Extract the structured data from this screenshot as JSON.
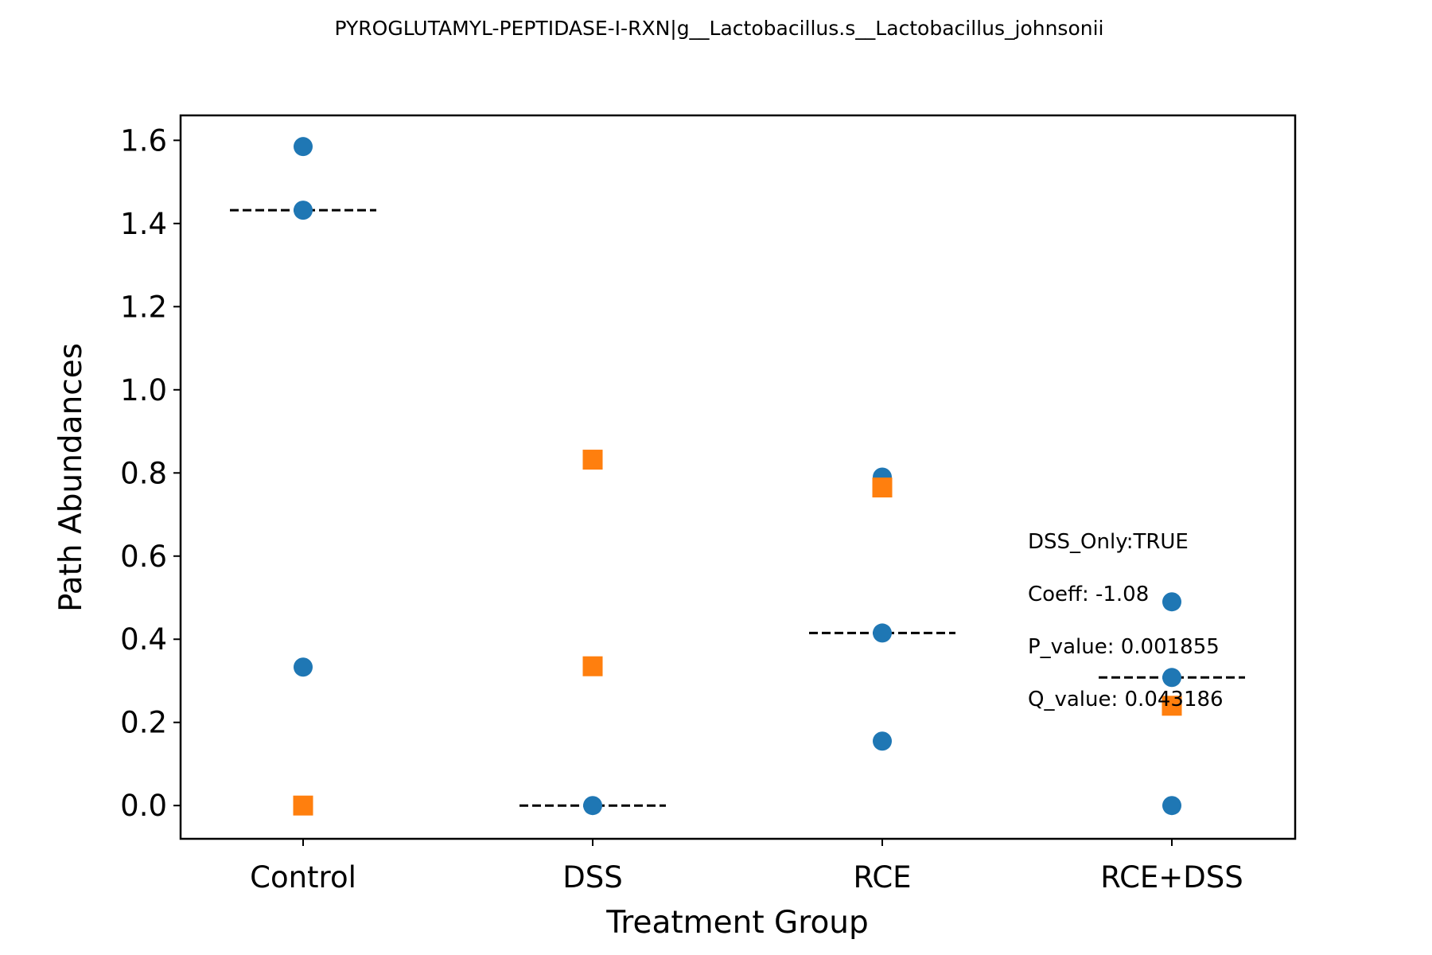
{
  "chart_data": {
    "type": "scatter",
    "title": "PYROGLUTAMYL-PEPTIDASE-I-RXN|g__Lactobacillus.s__Lactobacillus_johnsonii",
    "xlabel": "Treatment Group",
    "ylabel": "Path Abundances",
    "categories": [
      "Control",
      "DSS",
      "RCE",
      "RCE+DSS"
    ],
    "ylim": [
      -0.08,
      1.66
    ],
    "yticks": [
      "0.0",
      "0.2",
      "0.4",
      "0.6",
      "0.8",
      "1.0",
      "1.2",
      "1.4",
      "1.6"
    ],
    "grid": false,
    "series": [
      {
        "marker": "circle",
        "color": "#1f77b4",
        "points": [
          {
            "category": "Control",
            "y": 1.585
          },
          {
            "category": "Control",
            "y": 1.432
          },
          {
            "category": "Control",
            "y": 0.333
          },
          {
            "category": "DSS",
            "y": 0.0
          },
          {
            "category": "RCE",
            "y": 0.79
          },
          {
            "category": "RCE",
            "y": 0.415
          },
          {
            "category": "RCE",
            "y": 0.155
          },
          {
            "category": "RCE+DSS",
            "y": 0.49
          },
          {
            "category": "RCE+DSS",
            "y": 0.308
          },
          {
            "category": "RCE+DSS",
            "y": 0.0
          }
        ]
      },
      {
        "marker": "square",
        "color": "#ff7f0e",
        "points": [
          {
            "category": "Control",
            "y": 0.0
          },
          {
            "category": "DSS",
            "y": 0.832
          },
          {
            "category": "DSS",
            "y": 0.335
          },
          {
            "category": "RCE",
            "y": 0.765
          },
          {
            "category": "RCE+DSS",
            "y": 0.24
          }
        ]
      }
    ],
    "medians": [
      {
        "category": "Control",
        "y": 1.432
      },
      {
        "category": "DSS",
        "y": 0.0
      },
      {
        "category": "RCE",
        "y": 0.415
      },
      {
        "category": "RCE+DSS",
        "y": 0.308
      }
    ],
    "annotations": [
      "DSS_Only:TRUE",
      "Coeff: -1.08",
      "P_value: 0.001855",
      "Q_value: 0.043186"
    ]
  }
}
